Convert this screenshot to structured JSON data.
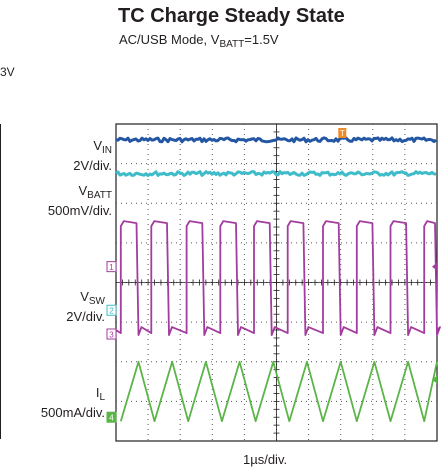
{
  "chart_data": {
    "type": "line",
    "title": "TC Charge Steady State",
    "subtitle": {
      "main": "AC/USB Mode, V",
      "sub": "BATT",
      "rest": "=1.5V"
    },
    "left_fragment": "3V",
    "xlabel": "1µs/div.",
    "x_unit": "div",
    "xlim": [
      0,
      10
    ],
    "ylim": [
      0,
      8
    ],
    "grid": true,
    "channels": [
      {
        "id": "1",
        "marker": "1",
        "label_main": "V",
        "label_sub": "SW",
        "label_scale": "2V/div.",
        "color": "#a23c9e",
        "ref_level_div": 4.4
      },
      {
        "id": "2",
        "marker": "2",
        "label_main": "V",
        "label_sub": "BATT",
        "label_scale": "500mV/div.",
        "color": "#3fbcc9",
        "ref_level_div": 3.3
      },
      {
        "id": "3",
        "marker": "3",
        "label_main": "",
        "label_sub": "",
        "label_scale": "",
        "color": "#a23c9e",
        "ref_level_div": 2.7
      },
      {
        "id": "4",
        "marker": "4",
        "label_main": "I",
        "label_sub": "L",
        "label_scale": "500mA/div.",
        "color": "#5bb447",
        "ref_level_div": 0.6
      },
      {
        "id": "IN",
        "marker": "",
        "label_main": "V",
        "label_sub": "IN",
        "label_scale": "2V/div.",
        "color": "#2357a4",
        "ref_level_div": 7.6
      }
    ],
    "trigger_marker": "T",
    "trigger_color": "#f08a24",
    "series": [
      {
        "name": "VIN",
        "color": "#2357a4",
        "shape": "flat",
        "level_div": 7.6
      },
      {
        "name": "VBATT",
        "color": "#3fbcc9",
        "shape": "flat",
        "level_div": 6.75
      },
      {
        "name": "VSW",
        "color": "#a23c9e",
        "shape": "pulse",
        "low_div": 2.8,
        "high_div": 5.55,
        "pulse_starts_div": [
          0.15,
          1.1,
          2.2,
          3.25,
          4.3,
          5.35,
          6.45,
          7.5,
          8.55,
          9.6
        ],
        "pulse_width_div": 0.55
      },
      {
        "name": "IL",
        "color": "#5bb447",
        "shape": "triangle",
        "low_div": 0.5,
        "high_div": 2.0,
        "peaks_div": [
          0.7,
          1.75,
          2.8,
          3.85,
          4.9,
          5.95,
          7.0,
          8.05,
          9.1,
          10.15
        ],
        "troughs_div": [
          0.15,
          1.2,
          2.25,
          3.3,
          4.35,
          5.4,
          6.45,
          7.5,
          8.55,
          9.6
        ]
      }
    ]
  }
}
